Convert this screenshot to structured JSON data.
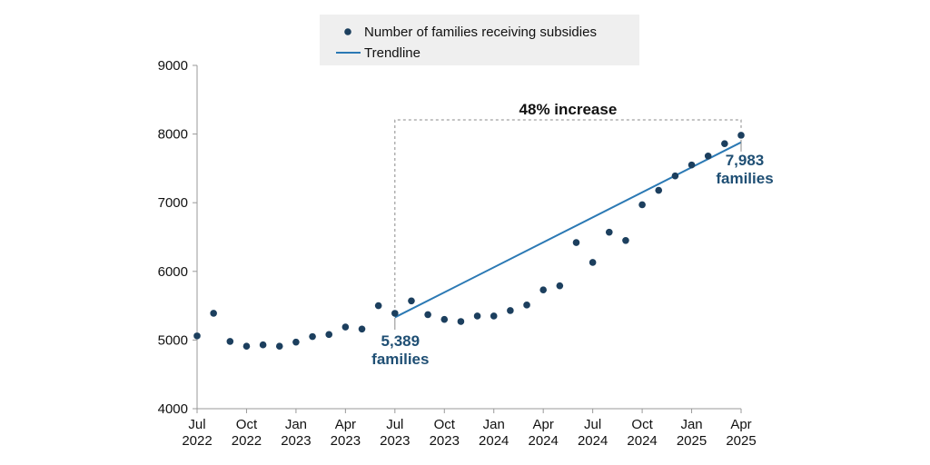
{
  "colors": {
    "point": "#1c3f5e",
    "trendline": "#2b79b4",
    "annotation": "#1f4f74",
    "legend_bg": "#efefef",
    "axis": "#999999"
  },
  "chart_data": {
    "type": "scatter",
    "title": "",
    "xlabel": "",
    "ylabel": "",
    "ylim": [
      4000,
      9000
    ],
    "xlim": [
      "2022-07",
      "2025-04"
    ],
    "yticks": [
      4000,
      5000,
      6000,
      7000,
      8000,
      9000
    ],
    "yticks_labels": [
      "4000",
      "5000",
      "6000",
      "7000",
      "8000",
      "9000"
    ],
    "xticks": [
      {
        "month": "2022-07",
        "line1": "Jul",
        "line2": "2022"
      },
      {
        "month": "2022-10",
        "line1": "Oct",
        "line2": "2022"
      },
      {
        "month": "2023-01",
        "line1": "Jan",
        "line2": "2023"
      },
      {
        "month": "2023-04",
        "line1": "Apr",
        "line2": "2023"
      },
      {
        "month": "2023-07",
        "line1": "Jul",
        "line2": "2023"
      },
      {
        "month": "2023-10",
        "line1": "Oct",
        "line2": "2023"
      },
      {
        "month": "2024-01",
        "line1": "Jan",
        "line2": "2024"
      },
      {
        "month": "2024-04",
        "line1": "Apr",
        "line2": "2024"
      },
      {
        "month": "2024-07",
        "line1": "Jul",
        "line2": "2024"
      },
      {
        "month": "2024-10",
        "line1": "Oct",
        "line2": "2024"
      },
      {
        "month": "2025-01",
        "line1": "Jan",
        "line2": "2025"
      },
      {
        "month": "2025-04",
        "line1": "Apr",
        "line2": "2025"
      }
    ],
    "legend_position": "top-center",
    "series": [
      {
        "name": "Number of families receiving subsidies",
        "kind": "points",
        "x": [
          "2022-07",
          "2022-08",
          "2022-09",
          "2022-10",
          "2022-11",
          "2022-12",
          "2023-01",
          "2023-02",
          "2023-03",
          "2023-04",
          "2023-05",
          "2023-06",
          "2023-07",
          "2023-08",
          "2023-09",
          "2023-10",
          "2023-11",
          "2023-12",
          "2024-01",
          "2024-02",
          "2024-03",
          "2024-04",
          "2024-05",
          "2024-06",
          "2024-07",
          "2024-08",
          "2024-09",
          "2024-10",
          "2024-11",
          "2024-12",
          "2025-01",
          "2025-02",
          "2025-03",
          "2025-04"
        ],
        "y": [
          5060,
          5390,
          4980,
          4910,
          4930,
          4910,
          4970,
          5050,
          5080,
          5190,
          5160,
          5500,
          5389,
          5570,
          5370,
          5300,
          5270,
          5350,
          5350,
          5430,
          5510,
          5730,
          5790,
          6420,
          6130,
          6570,
          6450,
          6970,
          7180,
          7390,
          7550,
          7680,
          7860,
          7983
        ]
      },
      {
        "name": "Trendline",
        "kind": "line",
        "x": [
          "2023-07",
          "2025-04"
        ],
        "y": [
          5330,
          7880
        ]
      }
    ],
    "annotations": {
      "increase_label": "48% increase",
      "start_value": "5,389",
      "start_unit": "families",
      "end_value": "7,983",
      "end_unit": "families"
    }
  }
}
